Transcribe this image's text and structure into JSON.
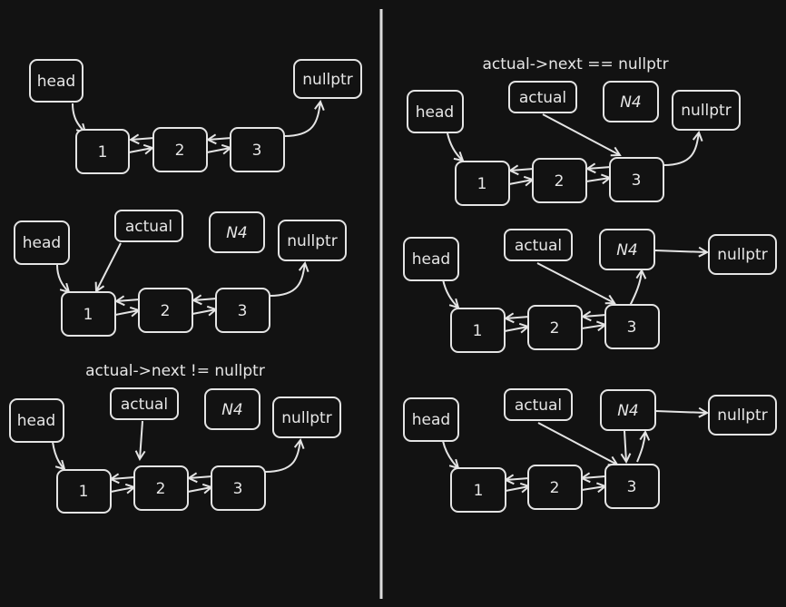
{
  "labels": {
    "head": "head",
    "actual": "actual",
    "n4": "N4",
    "nullptr": "nullptr",
    "one": "1",
    "two": "2",
    "three": "3"
  },
  "captions": {
    "loop_condition": "actual->next != nullptr",
    "end_condition": "actual->next == nullptr"
  },
  "colors": {
    "background": "#121212",
    "stroke": "#e4e4e4",
    "text": "#e6e6e6"
  }
}
